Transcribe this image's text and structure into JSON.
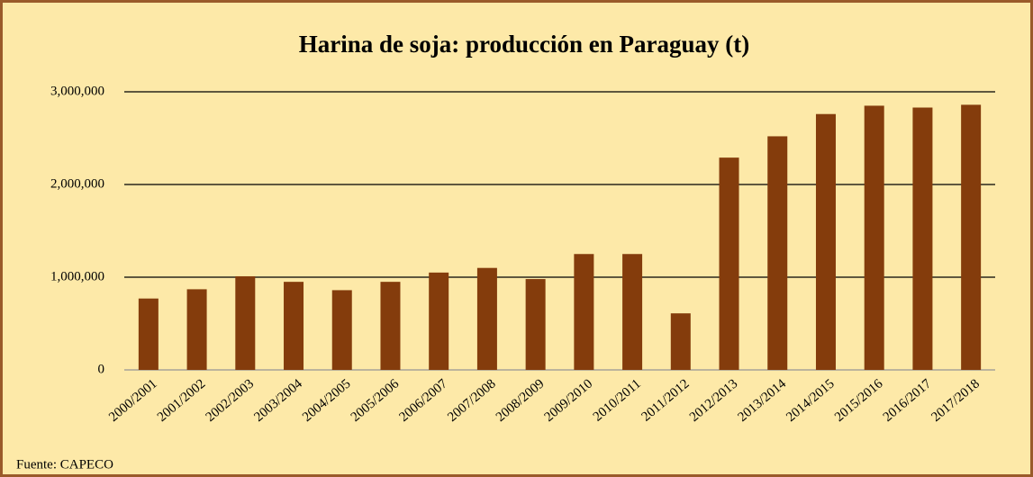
{
  "chart_data": {
    "type": "bar",
    "title": "Harina de soja: producción en Paraguay (t)",
    "categories": [
      "2000/2001",
      "2001/2002",
      "2002/2003",
      "2003/2004",
      "2004/2005",
      "2005/2006",
      "2006/2007",
      "2007/2008",
      "2008/2009",
      "2009/2010",
      "2010/2011",
      "2011/2012",
      "2012/2013",
      "2013/2014",
      "2014/2015",
      "2015/2016",
      "2016/2017",
      "2017/2018"
    ],
    "values": [
      770000,
      870000,
      1010000,
      950000,
      860000,
      950000,
      1050000,
      1100000,
      980000,
      1250000,
      1250000,
      610000,
      2290000,
      2520000,
      2760000,
      2850000,
      2830000,
      2860000
    ],
    "color": "#843c0c",
    "ylim": [
      0,
      3000000
    ],
    "yticks": [
      0,
      {
        "value": 1000000,
        "label": "1,000,000"
      },
      {
        "value": 2000000,
        "label": "2,000,000"
      },
      {
        "value": 3000000,
        "label": "3,000,000"
      }
    ],
    "grid": true,
    "source": "Fuente: CAPECO"
  }
}
